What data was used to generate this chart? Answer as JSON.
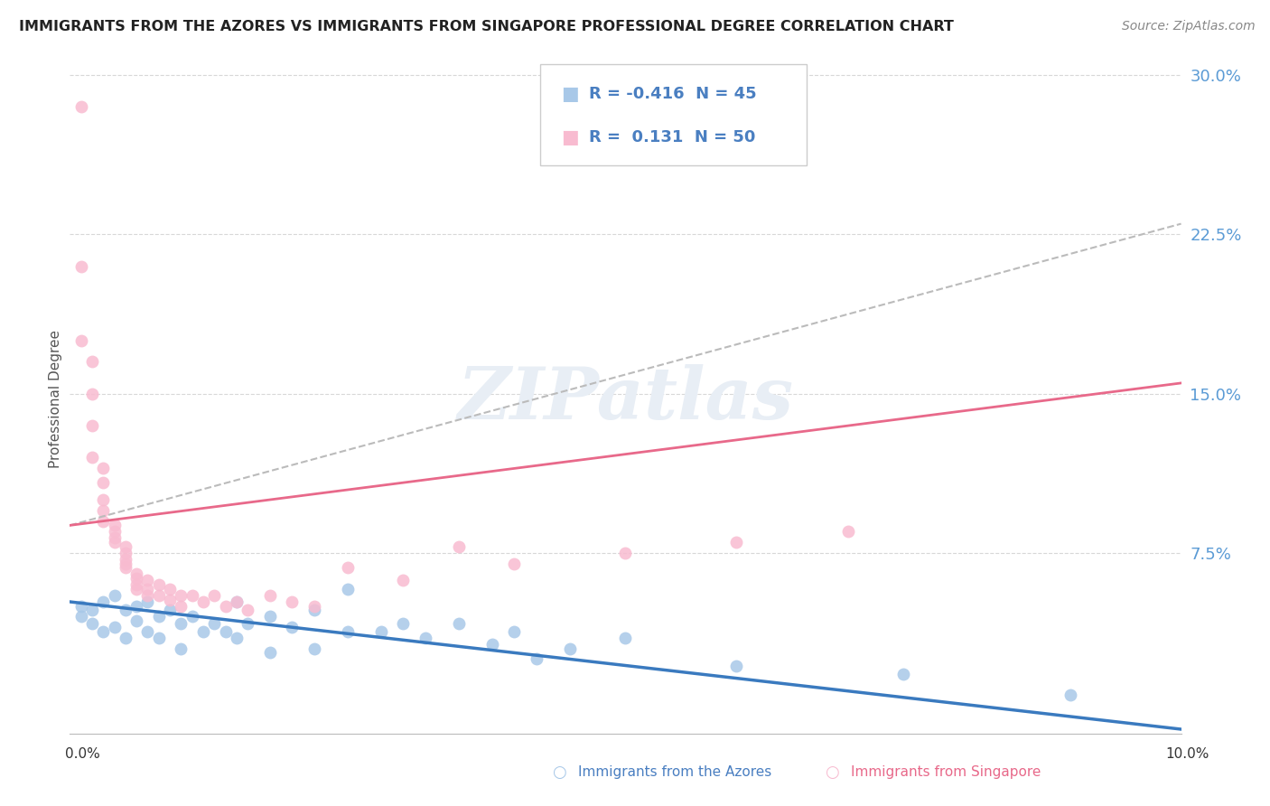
{
  "title": "IMMIGRANTS FROM THE AZORES VS IMMIGRANTS FROM SINGAPORE PROFESSIONAL DEGREE CORRELATION CHART",
  "source": "Source: ZipAtlas.com",
  "ylabel": "Professional Degree",
  "xmin": 0.0,
  "xmax": 0.1,
  "ymin": -0.01,
  "ymax": 0.305,
  "ytick_vals": [
    0.075,
    0.15,
    0.225,
    0.3
  ],
  "ytick_labels": [
    "7.5%",
    "15.0%",
    "22.5%",
    "30.0%"
  ],
  "legend_r_azores": "-0.416",
  "legend_n_azores": "45",
  "legend_r_singapore": "0.131",
  "legend_n_singapore": "50",
  "color_azores": "#a8c8e8",
  "color_singapore": "#f8bbd0",
  "line_color_azores": "#3a7abf",
  "line_color_singapore": "#e8698a",
  "line_color_dashed": "#bbbbbb",
  "watermark_color": "#e8eef5",
  "azores_points": [
    [
      0.001,
      0.05
    ],
    [
      0.001,
      0.045
    ],
    [
      0.002,
      0.048
    ],
    [
      0.002,
      0.042
    ],
    [
      0.003,
      0.052
    ],
    [
      0.003,
      0.038
    ],
    [
      0.004,
      0.055
    ],
    [
      0.004,
      0.04
    ],
    [
      0.005,
      0.048
    ],
    [
      0.005,
      0.035
    ],
    [
      0.006,
      0.05
    ],
    [
      0.006,
      0.043
    ],
    [
      0.007,
      0.052
    ],
    [
      0.007,
      0.038
    ],
    [
      0.008,
      0.045
    ],
    [
      0.008,
      0.035
    ],
    [
      0.009,
      0.048
    ],
    [
      0.01,
      0.042
    ],
    [
      0.01,
      0.03
    ],
    [
      0.011,
      0.045
    ],
    [
      0.012,
      0.038
    ],
    [
      0.013,
      0.042
    ],
    [
      0.014,
      0.038
    ],
    [
      0.015,
      0.052
    ],
    [
      0.015,
      0.035
    ],
    [
      0.016,
      0.042
    ],
    [
      0.018,
      0.045
    ],
    [
      0.018,
      0.028
    ],
    [
      0.02,
      0.04
    ],
    [
      0.022,
      0.048
    ],
    [
      0.022,
      0.03
    ],
    [
      0.025,
      0.058
    ],
    [
      0.025,
      0.038
    ],
    [
      0.028,
      0.038
    ],
    [
      0.03,
      0.042
    ],
    [
      0.032,
      0.035
    ],
    [
      0.035,
      0.042
    ],
    [
      0.038,
      0.032
    ],
    [
      0.04,
      0.038
    ],
    [
      0.042,
      0.025
    ],
    [
      0.045,
      0.03
    ],
    [
      0.05,
      0.035
    ],
    [
      0.06,
      0.022
    ],
    [
      0.075,
      0.018
    ],
    [
      0.09,
      0.008
    ]
  ],
  "singapore_points": [
    [
      0.001,
      0.285
    ],
    [
      0.001,
      0.21
    ],
    [
      0.001,
      0.175
    ],
    [
      0.002,
      0.165
    ],
    [
      0.002,
      0.15
    ],
    [
      0.002,
      0.135
    ],
    [
      0.002,
      0.12
    ],
    [
      0.003,
      0.115
    ],
    [
      0.003,
      0.108
    ],
    [
      0.003,
      0.1
    ],
    [
      0.003,
      0.095
    ],
    [
      0.003,
      0.09
    ],
    [
      0.004,
      0.088
    ],
    [
      0.004,
      0.085
    ],
    [
      0.004,
      0.082
    ],
    [
      0.004,
      0.08
    ],
    [
      0.005,
      0.078
    ],
    [
      0.005,
      0.075
    ],
    [
      0.005,
      0.072
    ],
    [
      0.005,
      0.07
    ],
    [
      0.005,
      0.068
    ],
    [
      0.006,
      0.065
    ],
    [
      0.006,
      0.063
    ],
    [
      0.006,
      0.06
    ],
    [
      0.006,
      0.058
    ],
    [
      0.007,
      0.062
    ],
    [
      0.007,
      0.058
    ],
    [
      0.007,
      0.055
    ],
    [
      0.008,
      0.06
    ],
    [
      0.008,
      0.055
    ],
    [
      0.009,
      0.058
    ],
    [
      0.009,
      0.053
    ],
    [
      0.01,
      0.055
    ],
    [
      0.01,
      0.05
    ],
    [
      0.011,
      0.055
    ],
    [
      0.012,
      0.052
    ],
    [
      0.013,
      0.055
    ],
    [
      0.014,
      0.05
    ],
    [
      0.015,
      0.052
    ],
    [
      0.016,
      0.048
    ],
    [
      0.018,
      0.055
    ],
    [
      0.02,
      0.052
    ],
    [
      0.022,
      0.05
    ],
    [
      0.025,
      0.068
    ],
    [
      0.03,
      0.062
    ],
    [
      0.035,
      0.078
    ],
    [
      0.04,
      0.07
    ],
    [
      0.05,
      0.075
    ],
    [
      0.06,
      0.08
    ],
    [
      0.07,
      0.085
    ]
  ],
  "azores_line_x0": 0.0,
  "azores_line_y0": 0.052,
  "azores_line_x1": 0.1,
  "azores_line_y1": -0.008,
  "singapore_line_x0": 0.0,
  "singapore_line_y0": 0.088,
  "singapore_line_x1": 0.1,
  "singapore_line_y1": 0.155,
  "dashed_line_x0": 0.0,
  "dashed_line_y0": 0.088,
  "dashed_line_x1": 0.1,
  "dashed_line_y1": 0.23
}
